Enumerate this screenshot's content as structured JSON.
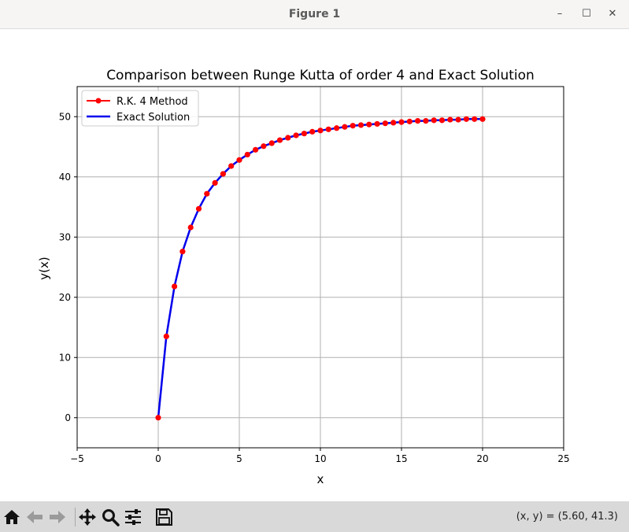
{
  "window": {
    "title": "Figure 1",
    "minimize_label": "–",
    "maximize_label": "☐",
    "close_label": "✕"
  },
  "toolbar": {
    "buttons": [
      "home-icon",
      "back-arrow-icon",
      "forward-arrow-icon",
      "pan-move-icon",
      "zoom-magnifier-icon",
      "configure-subplots-icon",
      "save-floppy-icon"
    ],
    "coords_readout": "(x, y) = (5.60, 41.3)"
  },
  "chart_data": {
    "type": "line",
    "title": "Comparison between Runge Kutta of order 4 and Exact Solution",
    "xlabel": "x",
    "ylabel": "y(x)",
    "xlim": [
      -5,
      25
    ],
    "ylim": [
      -5,
      55
    ],
    "xticks": [
      -5,
      0,
      5,
      10,
      15,
      20,
      25
    ],
    "yticks": [
      0,
      10,
      20,
      30,
      40,
      50
    ],
    "grid": true,
    "legend_position": "top-left",
    "series": [
      {
        "name": "R.K. 4 Method",
        "color": "#ff0000",
        "marker": "circle",
        "x": [
          0,
          0.5,
          1,
          1.5,
          2,
          2.5,
          3,
          3.5,
          4,
          4.5,
          5,
          5.5,
          6,
          6.5,
          7,
          7.5,
          8,
          8.5,
          9,
          9.5,
          10,
          10.5,
          11,
          11.5,
          12,
          12.5,
          13,
          13.5,
          14,
          14.5,
          15,
          15.5,
          16,
          16.5,
          17,
          17.5,
          18,
          18.5,
          19,
          19.5,
          20
        ],
        "y": [
          0,
          13.5,
          21.8,
          27.6,
          31.6,
          34.7,
          37.2,
          39.0,
          40.5,
          41.8,
          42.8,
          43.7,
          44.5,
          45.1,
          45.6,
          46.1,
          46.5,
          46.9,
          47.2,
          47.5,
          47.7,
          47.9,
          48.1,
          48.3,
          48.5,
          48.6,
          48.7,
          48.8,
          48.9,
          49.0,
          49.1,
          49.2,
          49.3,
          49.3,
          49.4,
          49.4,
          49.5,
          49.5,
          49.6,
          49.6,
          49.6
        ]
      },
      {
        "name": "Exact Solution",
        "color": "#0000ee",
        "marker": "none",
        "x": [
          0,
          0.5,
          1,
          1.5,
          2,
          2.5,
          3,
          3.5,
          4,
          4.5,
          5,
          5.5,
          6,
          6.5,
          7,
          7.5,
          8,
          8.5,
          9,
          9.5,
          10,
          10.5,
          11,
          11.5,
          12,
          12.5,
          13,
          13.5,
          14,
          14.5,
          15,
          15.5,
          16,
          16.5,
          17,
          17.5,
          18,
          18.5,
          19,
          19.5,
          20
        ],
        "y": [
          0,
          13.5,
          21.8,
          27.6,
          31.6,
          34.7,
          37.2,
          39.0,
          40.5,
          41.8,
          42.8,
          43.7,
          44.5,
          45.1,
          45.6,
          46.1,
          46.5,
          46.9,
          47.2,
          47.5,
          47.7,
          47.9,
          48.1,
          48.3,
          48.5,
          48.6,
          48.7,
          48.8,
          48.9,
          49.0,
          49.1,
          49.2,
          49.3,
          49.3,
          49.4,
          49.4,
          49.5,
          49.5,
          49.6,
          49.6,
          49.6
        ]
      }
    ]
  }
}
